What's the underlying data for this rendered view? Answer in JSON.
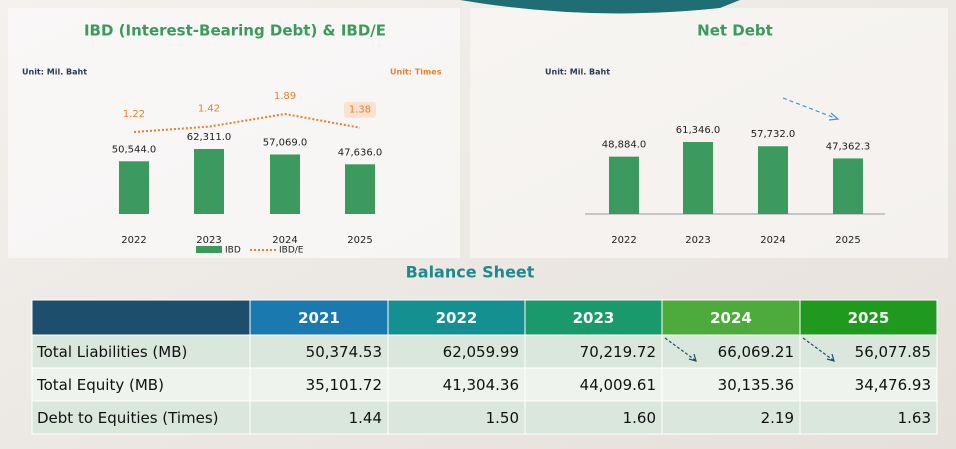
{
  "chart_data": [
    {
      "type": "bar",
      "title": "IBD (Interest-Bearing Debt) & IBD/E",
      "unit_label": "Unit: Mil. Baht",
      "y2_unit_label": "Unit: Times",
      "categories": [
        "2022",
        "2023",
        "2024",
        "2025"
      ],
      "series": [
        {
          "name": "IBD",
          "type": "bar",
          "color": "#3d9a5f",
          "values": [
            50544.0,
            62311.0,
            57069.0,
            47636.0
          ],
          "value_labels": [
            "50,544.0",
            "62,311.0",
            "57,069.0",
            "47,636.0"
          ]
        },
        {
          "name": "IBD/E",
          "type": "line",
          "axis": "y2",
          "color": "#e8812e",
          "values": [
            1.22,
            1.42,
            1.89,
            1.38
          ]
        }
      ]
    },
    {
      "type": "bar",
      "title": "Net Debt",
      "unit_label": "Unit: Mil. Baht",
      "categories": [
        "2022",
        "2023",
        "2024",
        "2025"
      ],
      "color": "#3d9a5f",
      "values": [
        48884.0,
        61346.0,
        57732.0,
        47362.3
      ],
      "value_labels": [
        "48,884.0",
        "61,346.0",
        "57,732.0",
        "47,362.3"
      ]
    }
  ],
  "table": {
    "title": "Balance Sheet",
    "columns": [
      "2021",
      "2022",
      "2023",
      "2024",
      "2025"
    ],
    "rows": [
      [
        "Total Liabilities (MB)",
        "50,374.53",
        "62,059.99",
        "70,219.72",
        "66,069.21",
        "56,077.85"
      ],
      [
        "Total Equity (MB)",
        "35,101.72",
        "41,304.36",
        "44,009.61",
        "30,135.36",
        "34,476.93"
      ],
      [
        "Debt to Equities (Times)",
        "1.44",
        "1.50",
        "1.60",
        "2.19",
        "1.63"
      ]
    ]
  }
}
